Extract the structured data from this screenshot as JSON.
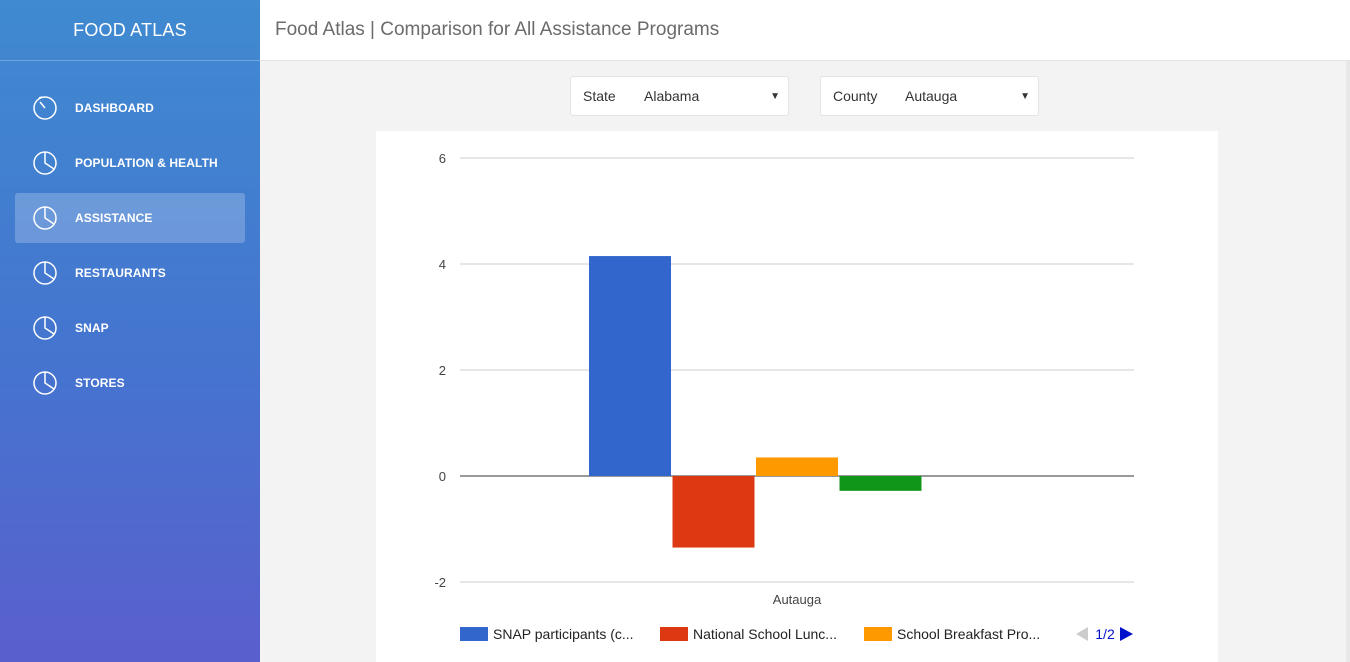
{
  "sidebar": {
    "brand": "FOOD ATLAS",
    "items": [
      {
        "label": "DASHBOARD",
        "icon": "dashboard-gauge-icon",
        "active": false
      },
      {
        "label": "POPULATION & HEALTH",
        "icon": "pie-chart-icon",
        "active": false
      },
      {
        "label": "ASSISTANCE",
        "icon": "pie-chart-icon",
        "active": true
      },
      {
        "label": "RESTAURANTS",
        "icon": "pie-chart-icon",
        "active": false
      },
      {
        "label": "SNAP",
        "icon": "pie-chart-icon",
        "active": false
      },
      {
        "label": "STORES",
        "icon": "pie-chart-icon",
        "active": false
      }
    ]
  },
  "header": {
    "title": "Food Atlas | Comparison for All Assistance Programs"
  },
  "filters": {
    "state": {
      "label": "State",
      "value": "Alabama"
    },
    "county": {
      "label": "County",
      "value": "Autauga"
    }
  },
  "colors": {
    "blue": "#3366cc",
    "red": "#dc3912",
    "orange": "#ff9900",
    "green": "#109618"
  },
  "chart_data": {
    "type": "bar",
    "categories": [
      "Autauga"
    ],
    "series": [
      {
        "name": "SNAP participants (c...",
        "values": [
          4.15
        ],
        "color": "#3366cc"
      },
      {
        "name": "National School Lunc...",
        "values": [
          -1.35
        ],
        "color": "#dc3912"
      },
      {
        "name": "School Breakfast Pro...",
        "values": [
          0.35
        ],
        "color": "#ff9900"
      },
      {
        "name": "",
        "values": [
          -0.28
        ],
        "color": "#109618"
      }
    ],
    "yticks": [
      "6",
      "4",
      "2",
      "0",
      "-2"
    ],
    "ylim": [
      -2,
      6
    ],
    "legend_page": "1/2",
    "legend_visible": 3,
    "title": "",
    "xlabel": "",
    "ylabel": ""
  }
}
